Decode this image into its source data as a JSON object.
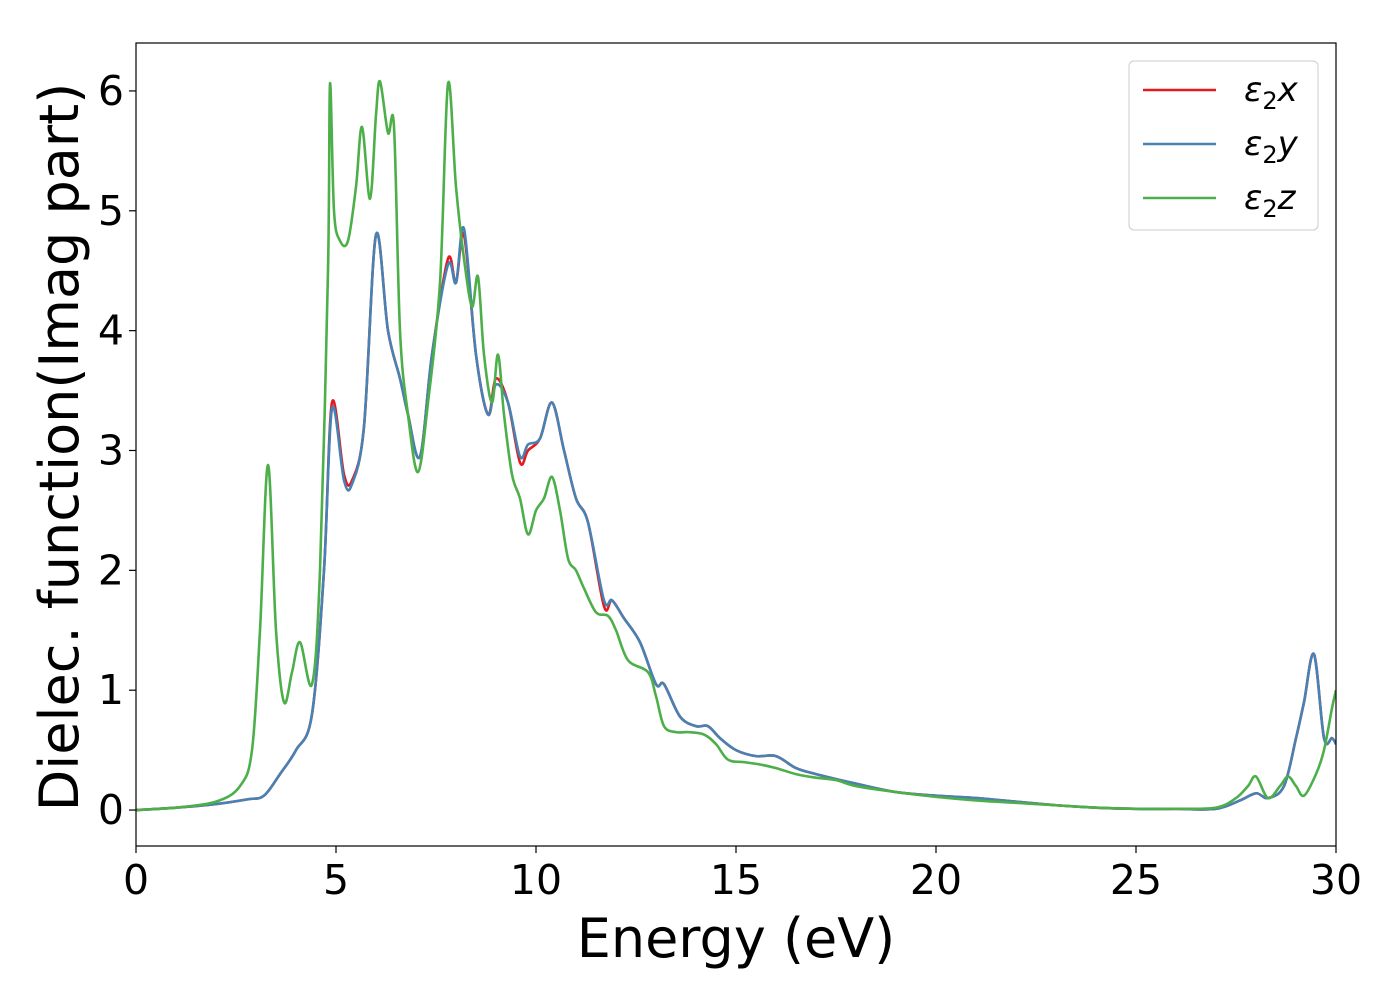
{
  "chart_data": {
    "type": "line",
    "title": "",
    "xlabel": "Energy (eV)",
    "ylabel": "Dielec. function(Imag part)",
    "xlim": [
      0,
      30
    ],
    "ylim": [
      -0.3,
      6.4
    ],
    "xticks": [
      0,
      5,
      10,
      15,
      20,
      25,
      30
    ],
    "xtick_labels": [
      "0",
      "5",
      "10",
      "15",
      "20",
      "25",
      "30"
    ],
    "yticks": [
      0,
      1,
      2,
      3,
      4,
      5,
      6
    ],
    "ytick_labels": [
      "0",
      "1",
      "2",
      "3",
      "4",
      "5",
      "6"
    ],
    "grid": false,
    "legend_position": "top-right",
    "series": [
      {
        "name": "ε2x",
        "legend_base": "ε",
        "legend_sub": "2",
        "legend_var": "x",
        "color": "#e41a1c",
        "points": [
          [
            0,
            0
          ],
          [
            1,
            0.02
          ],
          [
            2,
            0.05
          ],
          [
            2.8,
            0.09
          ],
          [
            3.2,
            0.12
          ],
          [
            3.6,
            0.3
          ],
          [
            4.0,
            0.5
          ],
          [
            4.4,
            0.8
          ],
          [
            4.7,
            2.0
          ],
          [
            4.9,
            3.4
          ],
          [
            5.2,
            2.8
          ],
          [
            5.4,
            2.75
          ],
          [
            5.7,
            3.2
          ],
          [
            6.0,
            4.8
          ],
          [
            6.3,
            4.0
          ],
          [
            6.6,
            3.6
          ],
          [
            6.8,
            3.3
          ],
          [
            7.1,
            2.95
          ],
          [
            7.4,
            3.8
          ],
          [
            7.8,
            4.6
          ],
          [
            8.0,
            4.4
          ],
          [
            8.2,
            4.8
          ],
          [
            8.5,
            3.8
          ],
          [
            8.8,
            3.3
          ],
          [
            9.0,
            3.6
          ],
          [
            9.3,
            3.4
          ],
          [
            9.6,
            2.9
          ],
          [
            9.8,
            3.0
          ],
          [
            10.1,
            3.1
          ],
          [
            10.4,
            3.4
          ],
          [
            10.7,
            3.0
          ],
          [
            11.0,
            2.6
          ],
          [
            11.3,
            2.4
          ],
          [
            11.7,
            1.7
          ],
          [
            11.9,
            1.75
          ],
          [
            12.2,
            1.6
          ],
          [
            12.6,
            1.4
          ],
          [
            13.0,
            1.05
          ],
          [
            13.2,
            1.05
          ],
          [
            13.6,
            0.78
          ],
          [
            14.0,
            0.7
          ],
          [
            14.3,
            0.7
          ],
          [
            14.6,
            0.6
          ],
          [
            15.0,
            0.5
          ],
          [
            15.5,
            0.45
          ],
          [
            16.0,
            0.45
          ],
          [
            16.5,
            0.35
          ],
          [
            17.0,
            0.3
          ],
          [
            18.0,
            0.22
          ],
          [
            19.0,
            0.15
          ],
          [
            20.0,
            0.12
          ],
          [
            21.0,
            0.1
          ],
          [
            22.0,
            0.07
          ],
          [
            23.0,
            0.04
          ],
          [
            24.0,
            0.02
          ],
          [
            25.0,
            0.01
          ],
          [
            26.0,
            0.01
          ],
          [
            27.0,
            0.01
          ],
          [
            27.6,
            0.08
          ],
          [
            28.0,
            0.14
          ],
          [
            28.3,
            0.1
          ],
          [
            28.7,
            0.2
          ],
          [
            29.0,
            0.6
          ],
          [
            29.2,
            0.9
          ],
          [
            29.45,
            1.3
          ],
          [
            29.7,
            0.6
          ],
          [
            29.9,
            0.6
          ],
          [
            30.0,
            0.55
          ]
        ]
      },
      {
        "name": "ε2y",
        "legend_base": "ε",
        "legend_sub": "2",
        "legend_var": "y",
        "color": "#4682b4",
        "points": [
          [
            0,
            0
          ],
          [
            1,
            0.02
          ],
          [
            2,
            0.05
          ],
          [
            2.8,
            0.09
          ],
          [
            3.2,
            0.12
          ],
          [
            3.6,
            0.3
          ],
          [
            4.0,
            0.5
          ],
          [
            4.4,
            0.8
          ],
          [
            4.7,
            2.0
          ],
          [
            4.9,
            3.35
          ],
          [
            5.2,
            2.75
          ],
          [
            5.4,
            2.72
          ],
          [
            5.7,
            3.2
          ],
          [
            6.0,
            4.8
          ],
          [
            6.3,
            4.0
          ],
          [
            6.6,
            3.6
          ],
          [
            6.8,
            3.3
          ],
          [
            7.1,
            2.95
          ],
          [
            7.4,
            3.8
          ],
          [
            7.8,
            4.55
          ],
          [
            8.0,
            4.4
          ],
          [
            8.2,
            4.85
          ],
          [
            8.5,
            3.8
          ],
          [
            8.8,
            3.3
          ],
          [
            9.0,
            3.55
          ],
          [
            9.3,
            3.4
          ],
          [
            9.6,
            2.95
          ],
          [
            9.8,
            3.05
          ],
          [
            10.1,
            3.1
          ],
          [
            10.4,
            3.4
          ],
          [
            10.7,
            3.0
          ],
          [
            11.0,
            2.6
          ],
          [
            11.3,
            2.4
          ],
          [
            11.7,
            1.75
          ],
          [
            11.9,
            1.75
          ],
          [
            12.2,
            1.6
          ],
          [
            12.6,
            1.4
          ],
          [
            13.0,
            1.05
          ],
          [
            13.2,
            1.05
          ],
          [
            13.6,
            0.78
          ],
          [
            14.0,
            0.7
          ],
          [
            14.3,
            0.7
          ],
          [
            14.6,
            0.6
          ],
          [
            15.0,
            0.5
          ],
          [
            15.5,
            0.45
          ],
          [
            16.0,
            0.45
          ],
          [
            16.5,
            0.35
          ],
          [
            17.0,
            0.3
          ],
          [
            18.0,
            0.22
          ],
          [
            19.0,
            0.15
          ],
          [
            20.0,
            0.12
          ],
          [
            21.0,
            0.1
          ],
          [
            22.0,
            0.07
          ],
          [
            23.0,
            0.04
          ],
          [
            24.0,
            0.02
          ],
          [
            25.0,
            0.01
          ],
          [
            26.0,
            0.01
          ],
          [
            27.0,
            0.01
          ],
          [
            27.6,
            0.08
          ],
          [
            28.0,
            0.14
          ],
          [
            28.3,
            0.1
          ],
          [
            28.7,
            0.2
          ],
          [
            29.0,
            0.6
          ],
          [
            29.2,
            0.9
          ],
          [
            29.45,
            1.3
          ],
          [
            29.7,
            0.6
          ],
          [
            29.9,
            0.6
          ],
          [
            30.0,
            0.55
          ]
        ]
      },
      {
        "name": "ε2z",
        "legend_base": "ε",
        "legend_sub": "2",
        "legend_var": "z",
        "color": "#4daf4a",
        "points": [
          [
            0,
            0
          ],
          [
            1,
            0.02
          ],
          [
            2,
            0.07
          ],
          [
            2.6,
            0.2
          ],
          [
            2.9,
            0.5
          ],
          [
            3.1,
            1.5
          ],
          [
            3.3,
            2.88
          ],
          [
            3.5,
            1.5
          ],
          [
            3.7,
            0.9
          ],
          [
            3.9,
            1.15
          ],
          [
            4.1,
            1.4
          ],
          [
            4.4,
            1.05
          ],
          [
            4.6,
            2.0
          ],
          [
            4.8,
            4.5
          ],
          [
            4.85,
            6.06
          ],
          [
            4.95,
            5.0
          ],
          [
            5.1,
            4.75
          ],
          [
            5.3,
            4.75
          ],
          [
            5.5,
            5.2
          ],
          [
            5.65,
            5.7
          ],
          [
            5.85,
            5.1
          ],
          [
            6.0,
            5.8
          ],
          [
            6.1,
            6.08
          ],
          [
            6.3,
            5.65
          ],
          [
            6.45,
            5.7
          ],
          [
            6.6,
            4.0
          ],
          [
            6.8,
            3.3
          ],
          [
            7.05,
            2.82
          ],
          [
            7.3,
            3.4
          ],
          [
            7.6,
            4.4
          ],
          [
            7.8,
            6.06
          ],
          [
            8.0,
            5.2
          ],
          [
            8.2,
            4.6
          ],
          [
            8.4,
            4.2
          ],
          [
            8.55,
            4.45
          ],
          [
            8.7,
            3.8
          ],
          [
            8.9,
            3.4
          ],
          [
            9.05,
            3.8
          ],
          [
            9.2,
            3.3
          ],
          [
            9.4,
            2.8
          ],
          [
            9.6,
            2.6
          ],
          [
            9.8,
            2.3
          ],
          [
            10.0,
            2.5
          ],
          [
            10.2,
            2.6
          ],
          [
            10.4,
            2.78
          ],
          [
            10.6,
            2.5
          ],
          [
            10.8,
            2.1
          ],
          [
            11.0,
            2.0
          ],
          [
            11.2,
            1.85
          ],
          [
            11.5,
            1.65
          ],
          [
            11.8,
            1.62
          ],
          [
            12.0,
            1.5
          ],
          [
            12.3,
            1.25
          ],
          [
            12.8,
            1.15
          ],
          [
            13.0,
            0.95
          ],
          [
            13.2,
            0.7
          ],
          [
            13.5,
            0.65
          ],
          [
            13.8,
            0.65
          ],
          [
            14.2,
            0.63
          ],
          [
            14.5,
            0.55
          ],
          [
            14.8,
            0.42
          ],
          [
            15.2,
            0.4
          ],
          [
            15.6,
            0.38
          ],
          [
            16.0,
            0.35
          ],
          [
            16.5,
            0.3
          ],
          [
            17.0,
            0.27
          ],
          [
            17.5,
            0.25
          ],
          [
            18.0,
            0.2
          ],
          [
            19.0,
            0.15
          ],
          [
            20.0,
            0.11
          ],
          [
            21.0,
            0.08
          ],
          [
            22.0,
            0.06
          ],
          [
            23.0,
            0.04
          ],
          [
            24.0,
            0.02
          ],
          [
            25.0,
            0.01
          ],
          [
            26.0,
            0.01
          ],
          [
            27.0,
            0.02
          ],
          [
            27.5,
            0.1
          ],
          [
            27.8,
            0.2
          ],
          [
            28.0,
            0.28
          ],
          [
            28.3,
            0.1
          ],
          [
            28.6,
            0.2
          ],
          [
            28.8,
            0.28
          ],
          [
            29.0,
            0.2
          ],
          [
            29.2,
            0.12
          ],
          [
            29.5,
            0.3
          ],
          [
            29.7,
            0.5
          ],
          [
            29.9,
            0.85
          ],
          [
            30.0,
            1.0
          ]
        ]
      }
    ]
  }
}
